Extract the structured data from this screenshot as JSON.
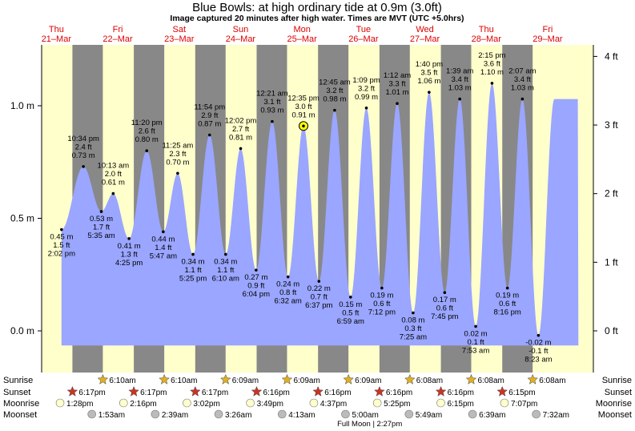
{
  "chart_data": {
    "type": "area",
    "title": "Blue Bowls: at high  ordinary tide at 0.9m (3.0ft)",
    "subtitle": "Image captured 20 minutes after high water. Times are MVT (UTC +5.0hrs)",
    "y_left_unit": "m",
    "y_right_unit": "ft",
    "ylim_m": [
      -0.13,
      1.3
    ],
    "y_left_ticks": [
      {
        "value": 0.0,
        "label": "0.0 m"
      },
      {
        "value": 0.5,
        "label": "0.5 m"
      },
      {
        "value": 1.0,
        "label": "1.0 m"
      }
    ],
    "y_right_ticks": [
      {
        "value": 0.0,
        "label": "0 ft"
      },
      {
        "value": 0.3048,
        "label": "1 ft"
      },
      {
        "value": 0.6096,
        "label": "2 ft"
      },
      {
        "value": 0.9144,
        "label": "3 ft"
      },
      {
        "value": 1.2192,
        "label": "4 ft"
      }
    ],
    "x_unit": "hours from Thu 21-Mar 00:00",
    "xlim_hours": [
      0,
      216
    ],
    "days": [
      {
        "name": "Thu",
        "date": "21–Mar"
      },
      {
        "name": "Fri",
        "date": "22–Mar"
      },
      {
        "name": "Sat",
        "date": "23–Mar"
      },
      {
        "name": "Sun",
        "date": "24–Mar"
      },
      {
        "name": "Mon",
        "date": "25–Mar"
      },
      {
        "name": "Tue",
        "date": "26–Mar"
      },
      {
        "name": "Wed",
        "date": "27–Mar"
      },
      {
        "name": "Thu",
        "date": "28–Mar"
      },
      {
        "name": "Fri",
        "date": "29–Mar"
      }
    ],
    "nights": [
      [
        18.28,
        30.17
      ],
      [
        42.28,
        54.17
      ],
      [
        66.28,
        78.15
      ],
      [
        90.27,
        102.15
      ],
      [
        114.27,
        126.15
      ],
      [
        138.27,
        150.13
      ],
      [
        162.27,
        174.13
      ],
      [
        186.25,
        198.13
      ]
    ],
    "tides": [
      {
        "time": "2:02 pm",
        "h": 14.03,
        "m": 0.45,
        "ft": "1.5 ft",
        "m_label": "0.45 m",
        "type": "low"
      },
      {
        "time": "10:34 pm",
        "h": 22.57,
        "m": 0.73,
        "ft": "2.4 ft",
        "m_label": "0.73 m",
        "type": "high"
      },
      {
        "time": "5:35 am",
        "h": 29.58,
        "m": 0.53,
        "ft": "1.7 ft",
        "m_label": "0.53 m",
        "type": "low"
      },
      {
        "time": "10:13 am",
        "h": 34.22,
        "m": 0.61,
        "ft": "2.0 ft",
        "m_label": "0.61 m",
        "type": "high"
      },
      {
        "time": "4:25 pm",
        "h": 40.42,
        "m": 0.41,
        "ft": "1.3 ft",
        "m_label": "0.41 m",
        "type": "low"
      },
      {
        "time": "11:20 pm",
        "h": 47.33,
        "m": 0.8,
        "ft": "2.6 ft",
        "m_label": "0.80 m",
        "type": "high"
      },
      {
        "time": "5:47 am",
        "h": 53.78,
        "m": 0.44,
        "ft": "1.4 ft",
        "m_label": "0.44 m",
        "type": "low"
      },
      {
        "time": "11:25 am",
        "h": 59.42,
        "m": 0.7,
        "ft": "2.3 ft",
        "m_label": "0.70 m",
        "type": "high"
      },
      {
        "time": "5:25 pm",
        "h": 65.42,
        "m": 0.34,
        "ft": "1.1 ft",
        "m_label": "0.34 m",
        "type": "low"
      },
      {
        "time": "11:54 pm",
        "h": 71.9,
        "m": 0.87,
        "ft": "2.9 ft",
        "m_label": "0.87 m",
        "type": "high"
      },
      {
        "time": "6:10 am",
        "h": 78.17,
        "m": 0.34,
        "ft": "1.1 ft",
        "m_label": "0.34 m",
        "type": "low"
      },
      {
        "time": "12:02 pm",
        "h": 84.03,
        "m": 0.81,
        "ft": "2.7 ft",
        "m_label": "0.81 m",
        "type": "high"
      },
      {
        "time": "6:04 pm",
        "h": 90.07,
        "m": 0.27,
        "ft": "0.9 ft",
        "m_label": "0.27 m",
        "type": "low"
      },
      {
        "time": "12:21 am",
        "h": 96.35,
        "m": 0.93,
        "ft": "3.1 ft",
        "m_label": "0.93 m",
        "type": "high"
      },
      {
        "time": "6:32 am",
        "h": 102.53,
        "m": 0.24,
        "ft": "0.8 ft",
        "m_label": "0.24 m",
        "type": "low"
      },
      {
        "time": "12:35 pm",
        "h": 108.58,
        "m": 0.91,
        "ft": "3.0 ft",
        "m_label": "0.91 m",
        "type": "high",
        "current": true
      },
      {
        "time": "6:37 pm",
        "h": 114.62,
        "m": 0.22,
        "ft": "0.7 ft",
        "m_label": "0.22 m",
        "type": "low"
      },
      {
        "time": "12:45 am",
        "h": 120.75,
        "m": 0.98,
        "ft": "3.2 ft",
        "m_label": "0.98 m",
        "type": "high"
      },
      {
        "time": "6:59 am",
        "h": 126.98,
        "m": 0.15,
        "ft": "0.5 ft",
        "m_label": "0.15 m",
        "type": "low"
      },
      {
        "time": "1:09 pm",
        "h": 133.15,
        "m": 0.99,
        "ft": "3.2 ft",
        "m_label": "0.99 m",
        "type": "high"
      },
      {
        "time": "7:12 pm",
        "h": 139.2,
        "m": 0.19,
        "ft": "0.6 ft",
        "m_label": "0.19 m",
        "type": "low"
      },
      {
        "time": "1:12 am",
        "h": 145.2,
        "m": 1.01,
        "ft": "3.3 ft",
        "m_label": "1.01 m",
        "type": "high"
      },
      {
        "time": "7:25 am",
        "h": 151.42,
        "m": 0.08,
        "ft": "0.3 ft",
        "m_label": "0.08 m",
        "type": "low"
      },
      {
        "time": "1:40 pm",
        "h": 157.67,
        "m": 1.06,
        "ft": "3.5 ft",
        "m_label": "1.06 m",
        "type": "high"
      },
      {
        "time": "7:45 pm",
        "h": 163.75,
        "m": 0.17,
        "ft": "0.6 ft",
        "m_label": "0.17 m",
        "type": "low"
      },
      {
        "time": "1:39 am",
        "h": 169.65,
        "m": 1.03,
        "ft": "3.4 ft",
        "m_label": "1.03 m",
        "type": "high"
      },
      {
        "time": "7:53 am",
        "h": 175.88,
        "m": 0.02,
        "ft": "0.1 ft",
        "m_label": "0.02 m",
        "type": "low"
      },
      {
        "time": "2:15 pm",
        "h": 182.25,
        "m": 1.1,
        "ft": "3.6 ft",
        "m_label": "1.10 m",
        "type": "high"
      },
      {
        "time": "8:16 pm",
        "h": 188.27,
        "m": 0.19,
        "ft": "0.6 ft",
        "m_label": "0.19 m",
        "type": "low"
      },
      {
        "time": "2:07 am",
        "h": 194.12,
        "m": 1.03,
        "ft": "3.4 ft",
        "m_label": "1.03 m",
        "type": "high"
      },
      {
        "time": "8:23 am",
        "h": 200.38,
        "m": -0.02,
        "ft": "-0.1 ft",
        "m_label": "-0.02 m",
        "type": "low"
      }
    ]
  },
  "astro": {
    "row_labels": {
      "sunrise": "Sunrise",
      "sunset": "Sunset",
      "moonrise": "Moonrise",
      "moonset": "Moonset"
    },
    "sunrise": [
      {
        "h": 30.17,
        "label": "6:10am"
      },
      {
        "h": 54.17,
        "label": "6:10am"
      },
      {
        "h": 78.15,
        "label": "6:09am"
      },
      {
        "h": 102.15,
        "label": "6:09am"
      },
      {
        "h": 126.15,
        "label": "6:09am"
      },
      {
        "h": 150.13,
        "label": "6:08am"
      },
      {
        "h": 174.13,
        "label": "6:08am"
      },
      {
        "h": 198.13,
        "label": "6:08am"
      }
    ],
    "sunset": [
      {
        "h": 18.28,
        "label": "6:17pm"
      },
      {
        "h": 42.28,
        "label": "6:17pm"
      },
      {
        "h": 66.28,
        "label": "6:17pm"
      },
      {
        "h": 90.27,
        "label": "6:16pm"
      },
      {
        "h": 114.27,
        "label": "6:16pm"
      },
      {
        "h": 138.27,
        "label": "6:16pm"
      },
      {
        "h": 162.27,
        "label": "6:16pm"
      },
      {
        "h": 186.25,
        "label": "6:15pm"
      }
    ],
    "moonrise": [
      {
        "h": 13.47,
        "label": "1:28pm"
      },
      {
        "h": 38.27,
        "label": "2:16pm"
      },
      {
        "h": 63.03,
        "label": "3:02pm"
      },
      {
        "h": 87.82,
        "label": "3:49pm"
      },
      {
        "h": 112.62,
        "label": "4:37pm"
      },
      {
        "h": 137.42,
        "label": "5:25pm"
      },
      {
        "h": 162.25,
        "label": "6:15pm"
      },
      {
        "h": 187.12,
        "label": "7:07pm"
      }
    ],
    "moonset": [
      {
        "h": 25.88,
        "label": "1:53am"
      },
      {
        "h": 50.65,
        "label": "2:39am"
      },
      {
        "h": 75.43,
        "label": "3:26am"
      },
      {
        "h": 100.22,
        "label": "4:13am"
      },
      {
        "h": 125.0,
        "label": "5:00am"
      },
      {
        "h": 149.82,
        "label": "5:49am"
      },
      {
        "h": 174.65,
        "label": "6:39am"
      },
      {
        "h": 199.53,
        "label": "7:32am"
      }
    ],
    "moon_phase": {
      "h": 134.45,
      "label": "Full Moon | 2:27pm"
    }
  },
  "colors": {
    "day": "#ffffcc",
    "night": "#888888",
    "water": "#9aa6ff",
    "day_label": "#dd0000",
    "sunrise_star": "#e0b020",
    "sunset_star": "#cc3322",
    "moonrise_disc": "#ffffcc",
    "moonset_disc": "#bbbbbb",
    "current_marker": "#ffff00"
  }
}
